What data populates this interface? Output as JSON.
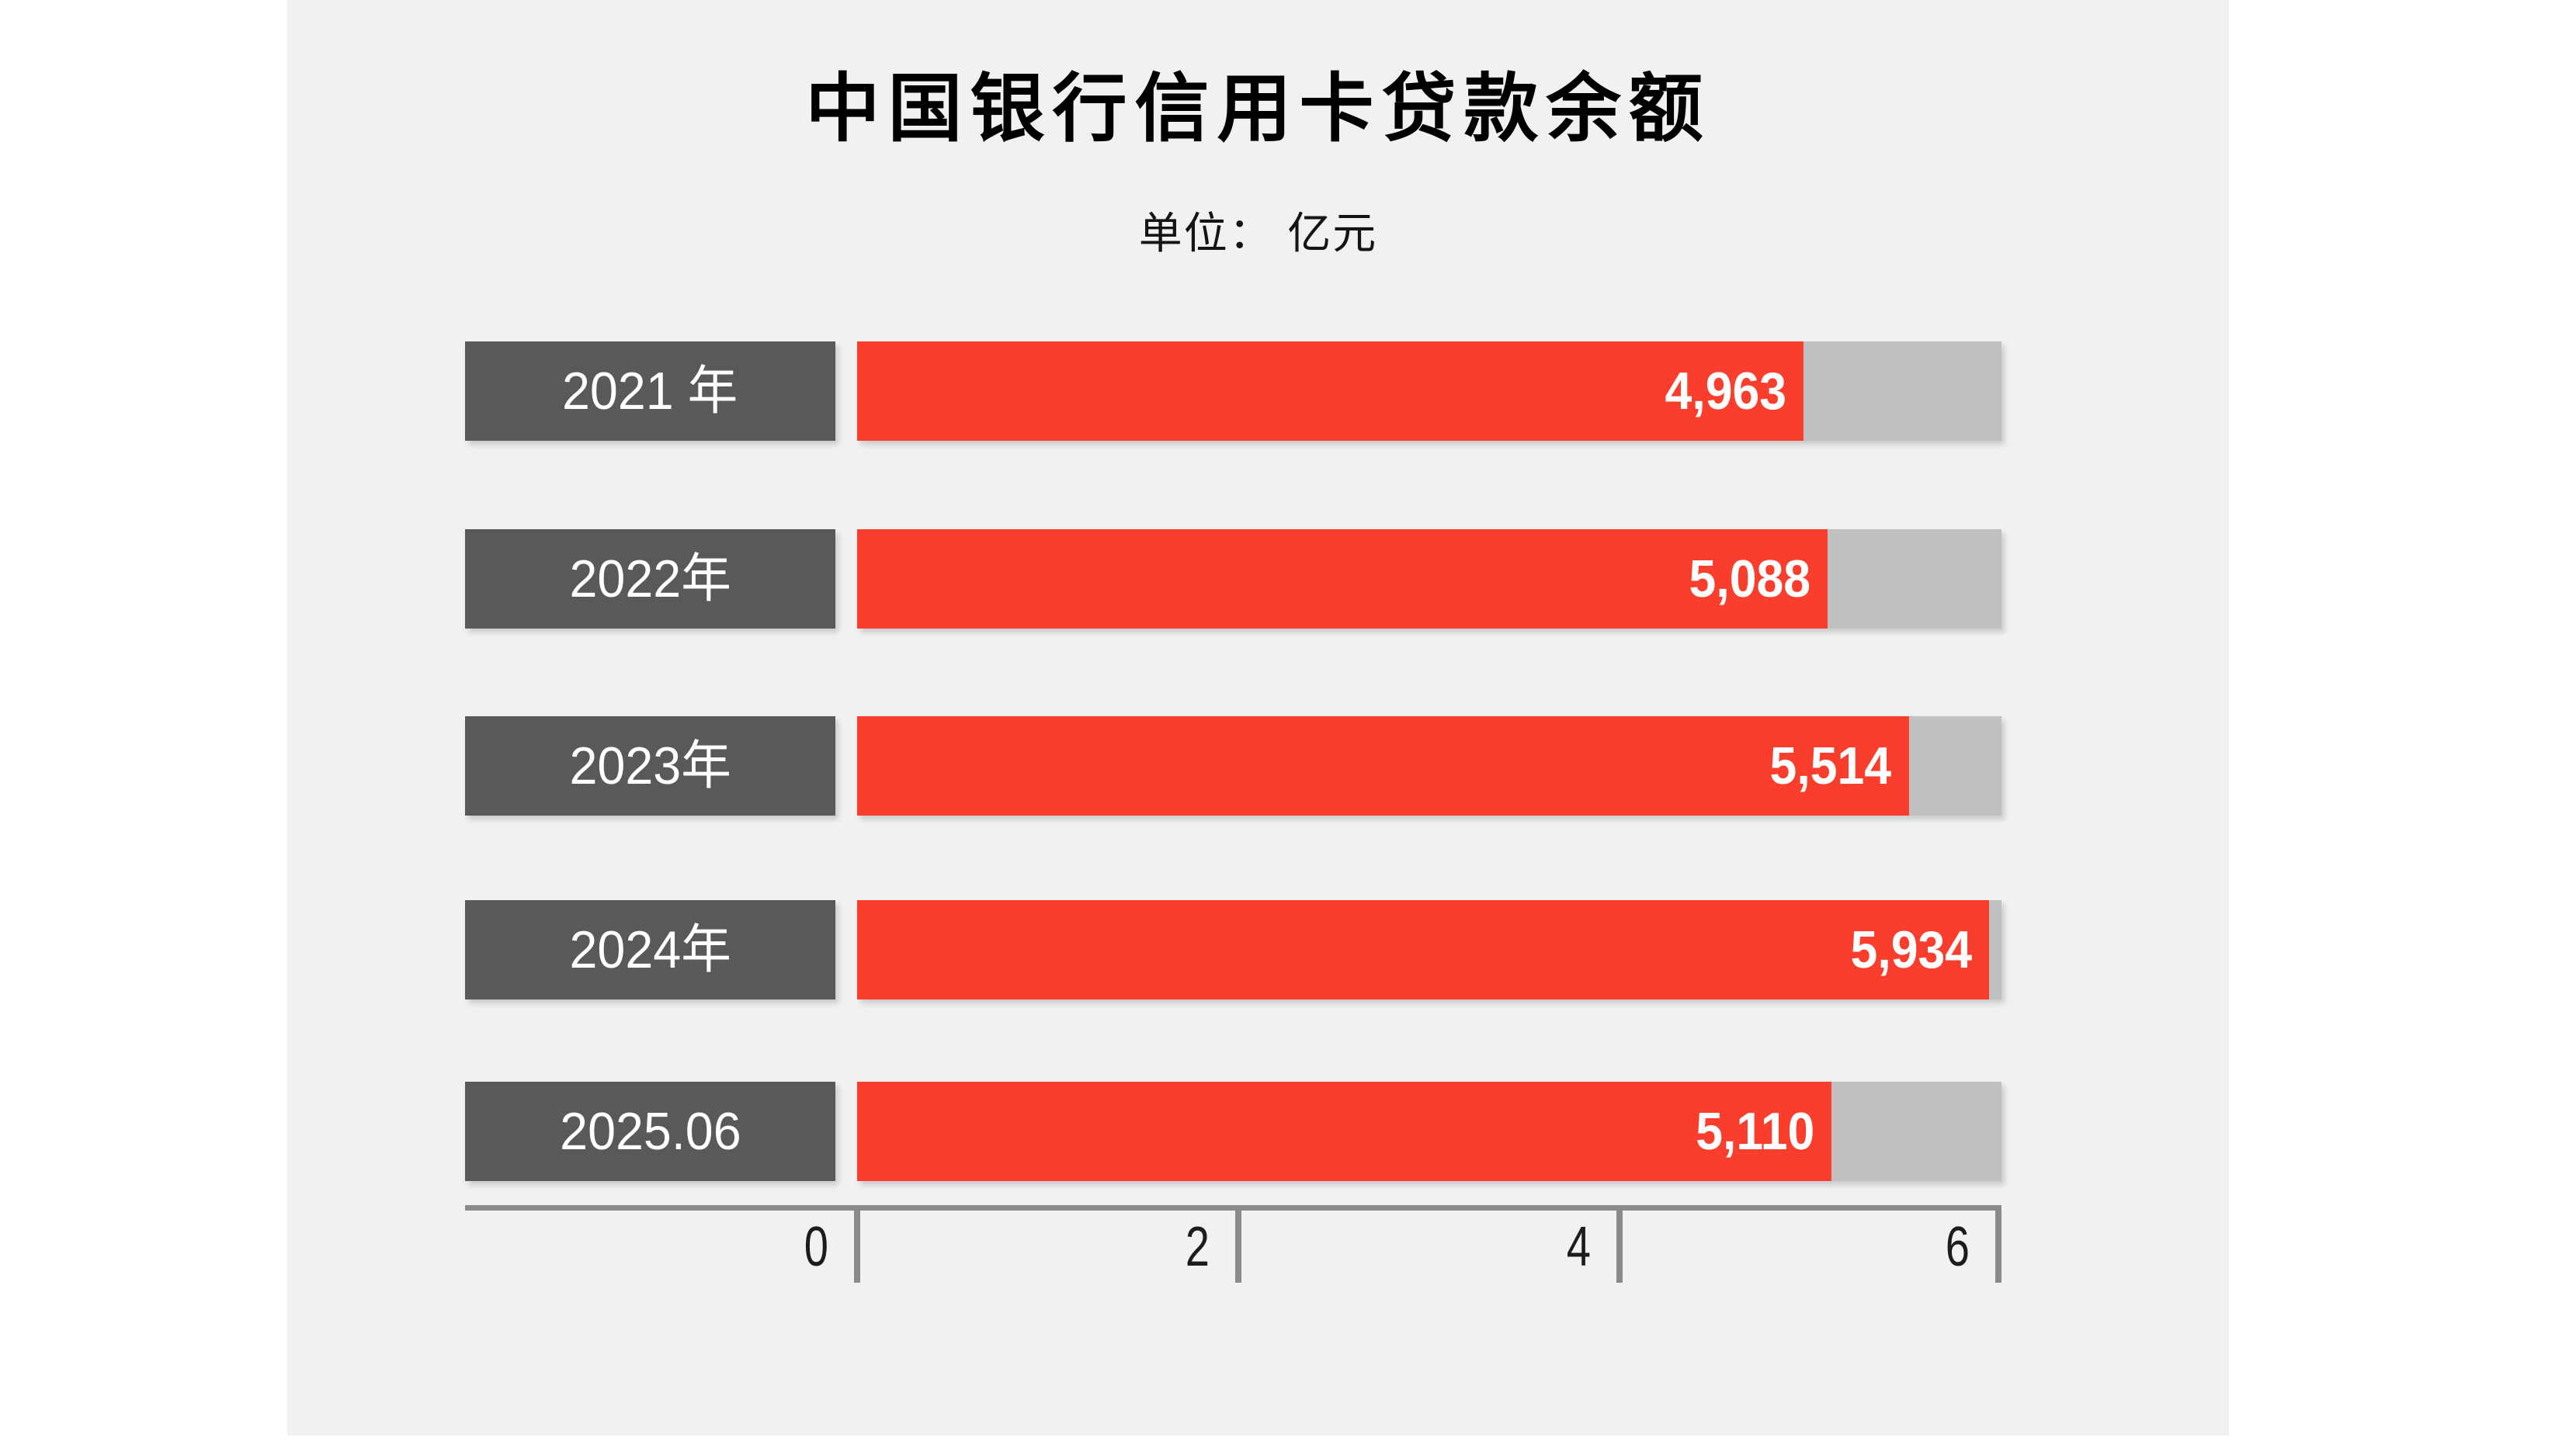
{
  "header": {
    "title": "中国银行信用卡贷款余额",
    "subtitle": "单位： 亿元"
  },
  "chart_data": {
    "type": "bar",
    "orientation": "horizontal",
    "title": "中国银行信用卡贷款余额",
    "subtitle": "单位： 亿元",
    "unit": "亿元",
    "categories": [
      "2021 年",
      "2022年",
      "2023年",
      "2024年",
      "2025.06"
    ],
    "values": [
      4963,
      5088,
      5514,
      5934,
      5110
    ],
    "value_labels": [
      "4,963",
      "5,088",
      "5,514",
      "5,934",
      "5,110"
    ],
    "xlabel": "",
    "ylabel": "",
    "xlim": [
      0,
      6000
    ],
    "x_tick_labels": [
      "0",
      "2",
      "4",
      "6"
    ],
    "x_tick_values": [
      0,
      2000,
      4000,
      6000
    ],
    "grid": false,
    "legend": false,
    "layout_hints": {
      "bars_start_at_tick_zero": true,
      "full_length_track_behind_bars": true,
      "value_labels_inside_bar_right_aligned": true,
      "category_labels_in_dark_boxes": true
    },
    "colors": {
      "bar_fill": "#f93e2e",
      "bar_track": "#c0c0c1",
      "category_box": "#595959",
      "category_text": "#ffffff",
      "value_text": "#ffffff",
      "axis_line": "#8a8a8a",
      "tick_text": "#1c1c1c",
      "panel_background": "#f1f1f1",
      "page_background": "#ffffff",
      "title_text": "#000000"
    }
  }
}
